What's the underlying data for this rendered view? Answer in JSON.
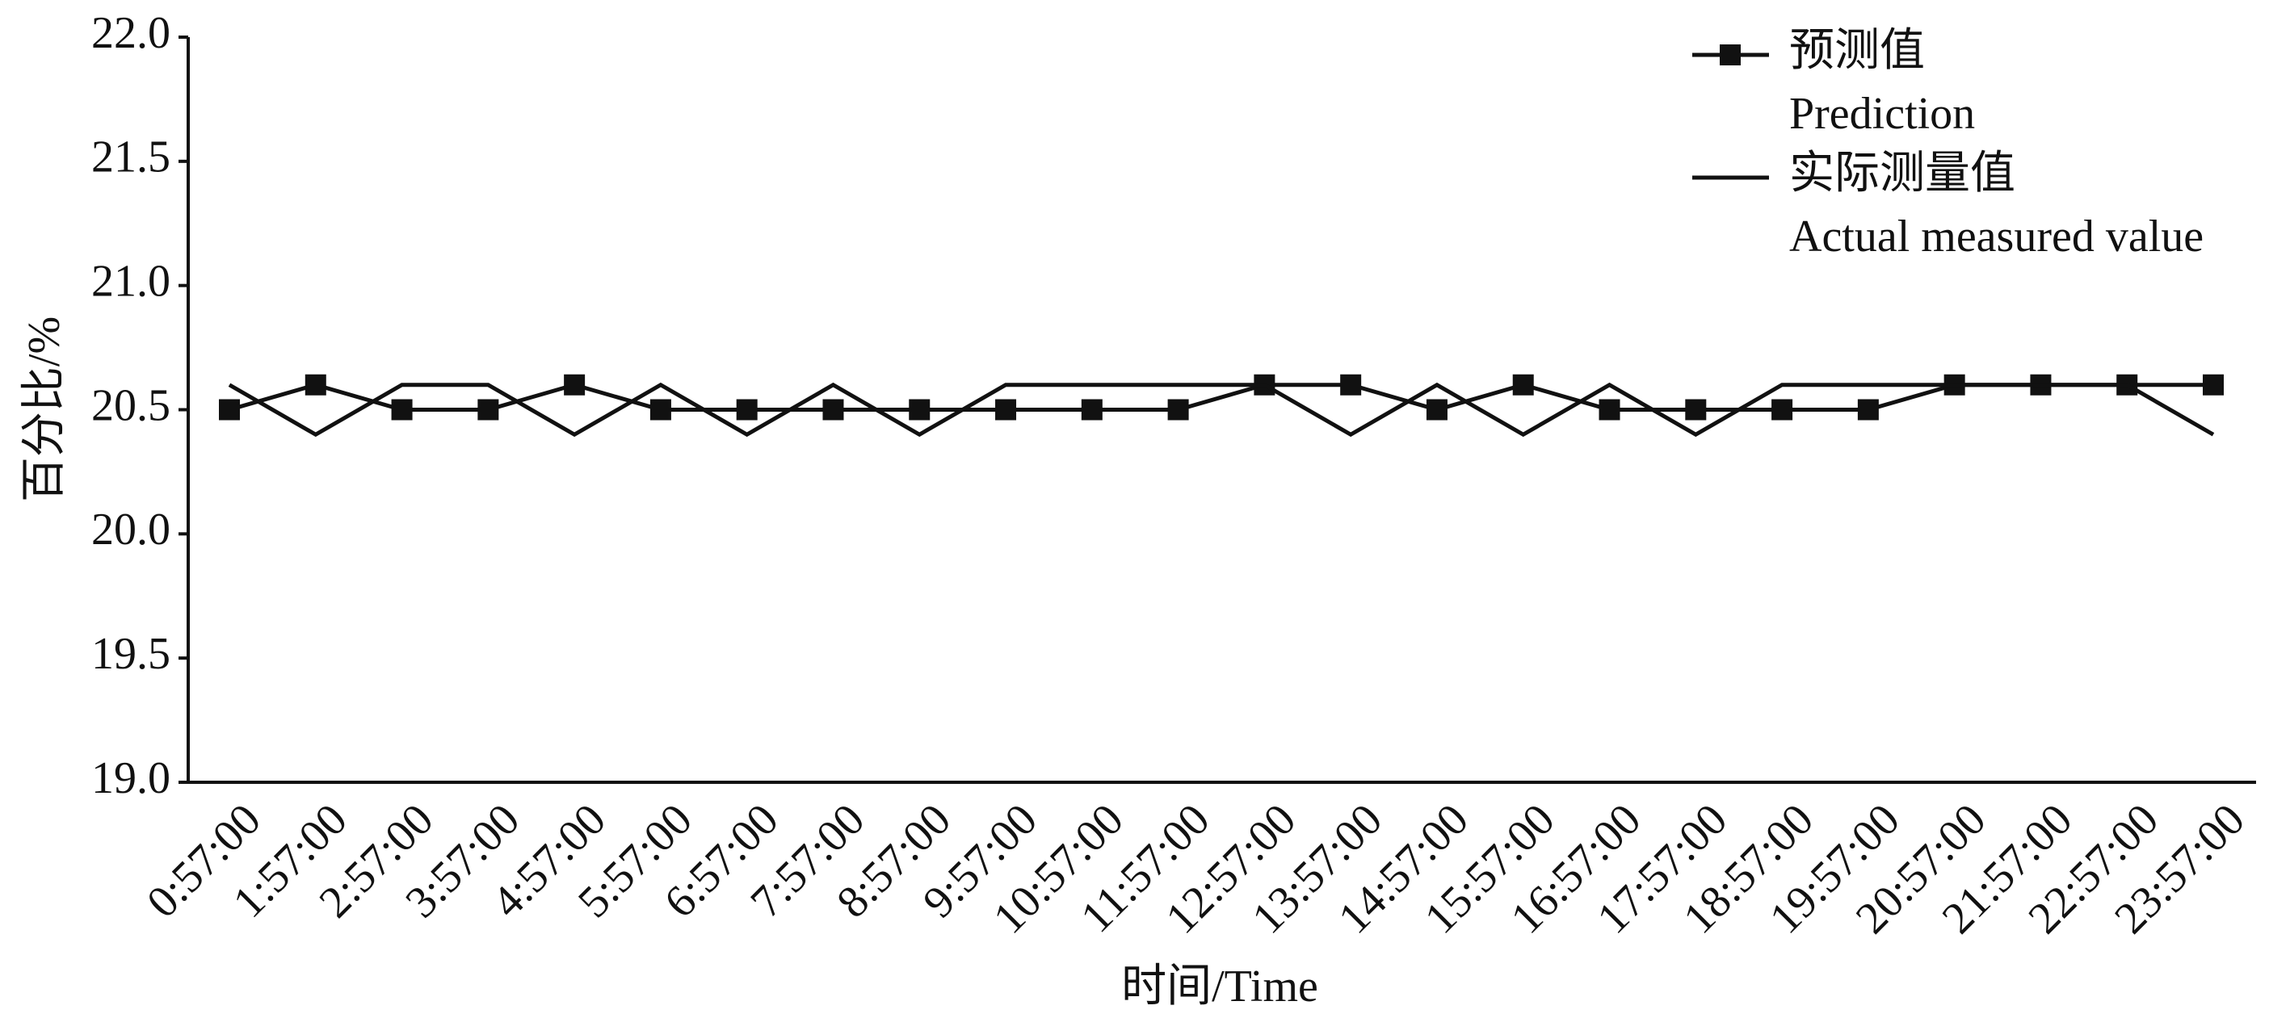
{
  "chart_data": {
    "type": "line",
    "y_label": "百分比/%",
    "x_label": "时间/Time",
    "categories": [
      "0:57:00",
      "1:57:00",
      "2:57:00",
      "3:57:00",
      "4:57:00",
      "5:57:00",
      "6:57:00",
      "7:57:00",
      "8:57:00",
      "9:57:00",
      "10:57:00",
      "11:57:00",
      "12:57:00",
      "13:57:00",
      "14:57:00",
      "15:57:00",
      "16:57:00",
      "17:57:00",
      "18:57:00",
      "19:57:00",
      "20:57:00",
      "21:57:00",
      "22:57:00",
      "23:57:00"
    ],
    "series": [
      {
        "name": [
          "预测值",
          "Prediction"
        ],
        "color": "#111111",
        "marker": "square",
        "values": [
          20.5,
          20.6,
          20.5,
          20.5,
          20.6,
          20.5,
          20.5,
          20.5,
          20.5,
          20.5,
          20.5,
          20.5,
          20.6,
          20.6,
          20.5,
          20.6,
          20.5,
          20.5,
          20.5,
          20.5,
          20.6,
          20.6,
          20.6,
          20.6
        ]
      },
      {
        "name": [
          "实际测量值",
          "Actual measured value"
        ],
        "color": "#111111",
        "marker": "none",
        "values": [
          20.6,
          20.4,
          20.6,
          20.6,
          20.4,
          20.6,
          20.4,
          20.6,
          20.4,
          20.6,
          20.6,
          20.6,
          20.6,
          20.4,
          20.6,
          20.4,
          20.6,
          20.4,
          20.6,
          20.6,
          20.6,
          20.6,
          20.6,
          20.4
        ]
      }
    ],
    "ylim": [
      19,
      22
    ],
    "yticks": [
      {
        "value": 19,
        "label": "19.0"
      },
      19.5,
      {
        "value": 20,
        "label": "20.0"
      },
      20.5,
      {
        "value": 21,
        "label": "21.0"
      },
      21.5,
      {
        "value": 22,
        "label": "22.0"
      }
    ],
    "grid": false,
    "legend": "upper right"
  }
}
